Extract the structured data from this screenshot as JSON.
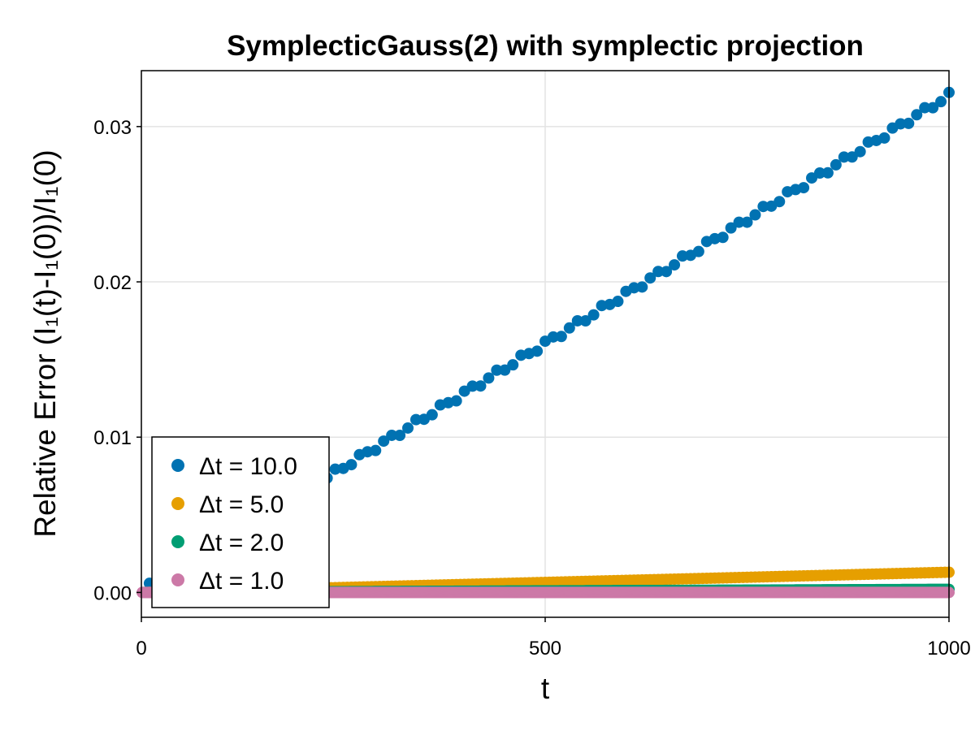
{
  "chart_data": {
    "type": "scatter",
    "title": "SymplecticGauss(2) with symplectic projection",
    "xlabel": "t",
    "ylabel": "Relative Error (I₁(t)-I₁(0))/I₁(0)",
    "xlim": [
      0,
      1000
    ],
    "ylim": [
      -0.0016,
      0.0336
    ],
    "xticks": [
      0,
      500,
      1000
    ],
    "xtick_labels": [
      "0",
      "500",
      "1000"
    ],
    "yticks": [
      0.0,
      0.01,
      0.02,
      0.03
    ],
    "ytick_labels": [
      "0.00",
      "0.01",
      "0.02",
      "0.03"
    ],
    "grid": true,
    "legend_position": "bottom-left",
    "series": [
      {
        "name": "Δt = 10.0",
        "color": "#0072b2",
        "dt": 10,
        "y_start": 0.0004,
        "y_end": 0.032
      },
      {
        "name": "Δt = 5.0",
        "color": "#e69f00",
        "dt": 5,
        "y_start": 0.0,
        "y_end": 0.0013
      },
      {
        "name": "Δt = 2.0",
        "color": "#009e73",
        "dt": 2,
        "y_start": 0.0,
        "y_end": 0.0002
      },
      {
        "name": "Δt = 1.0",
        "color": "#cc79a7",
        "dt": 1,
        "y_start": 0.0,
        "y_end": 0.0
      }
    ]
  }
}
